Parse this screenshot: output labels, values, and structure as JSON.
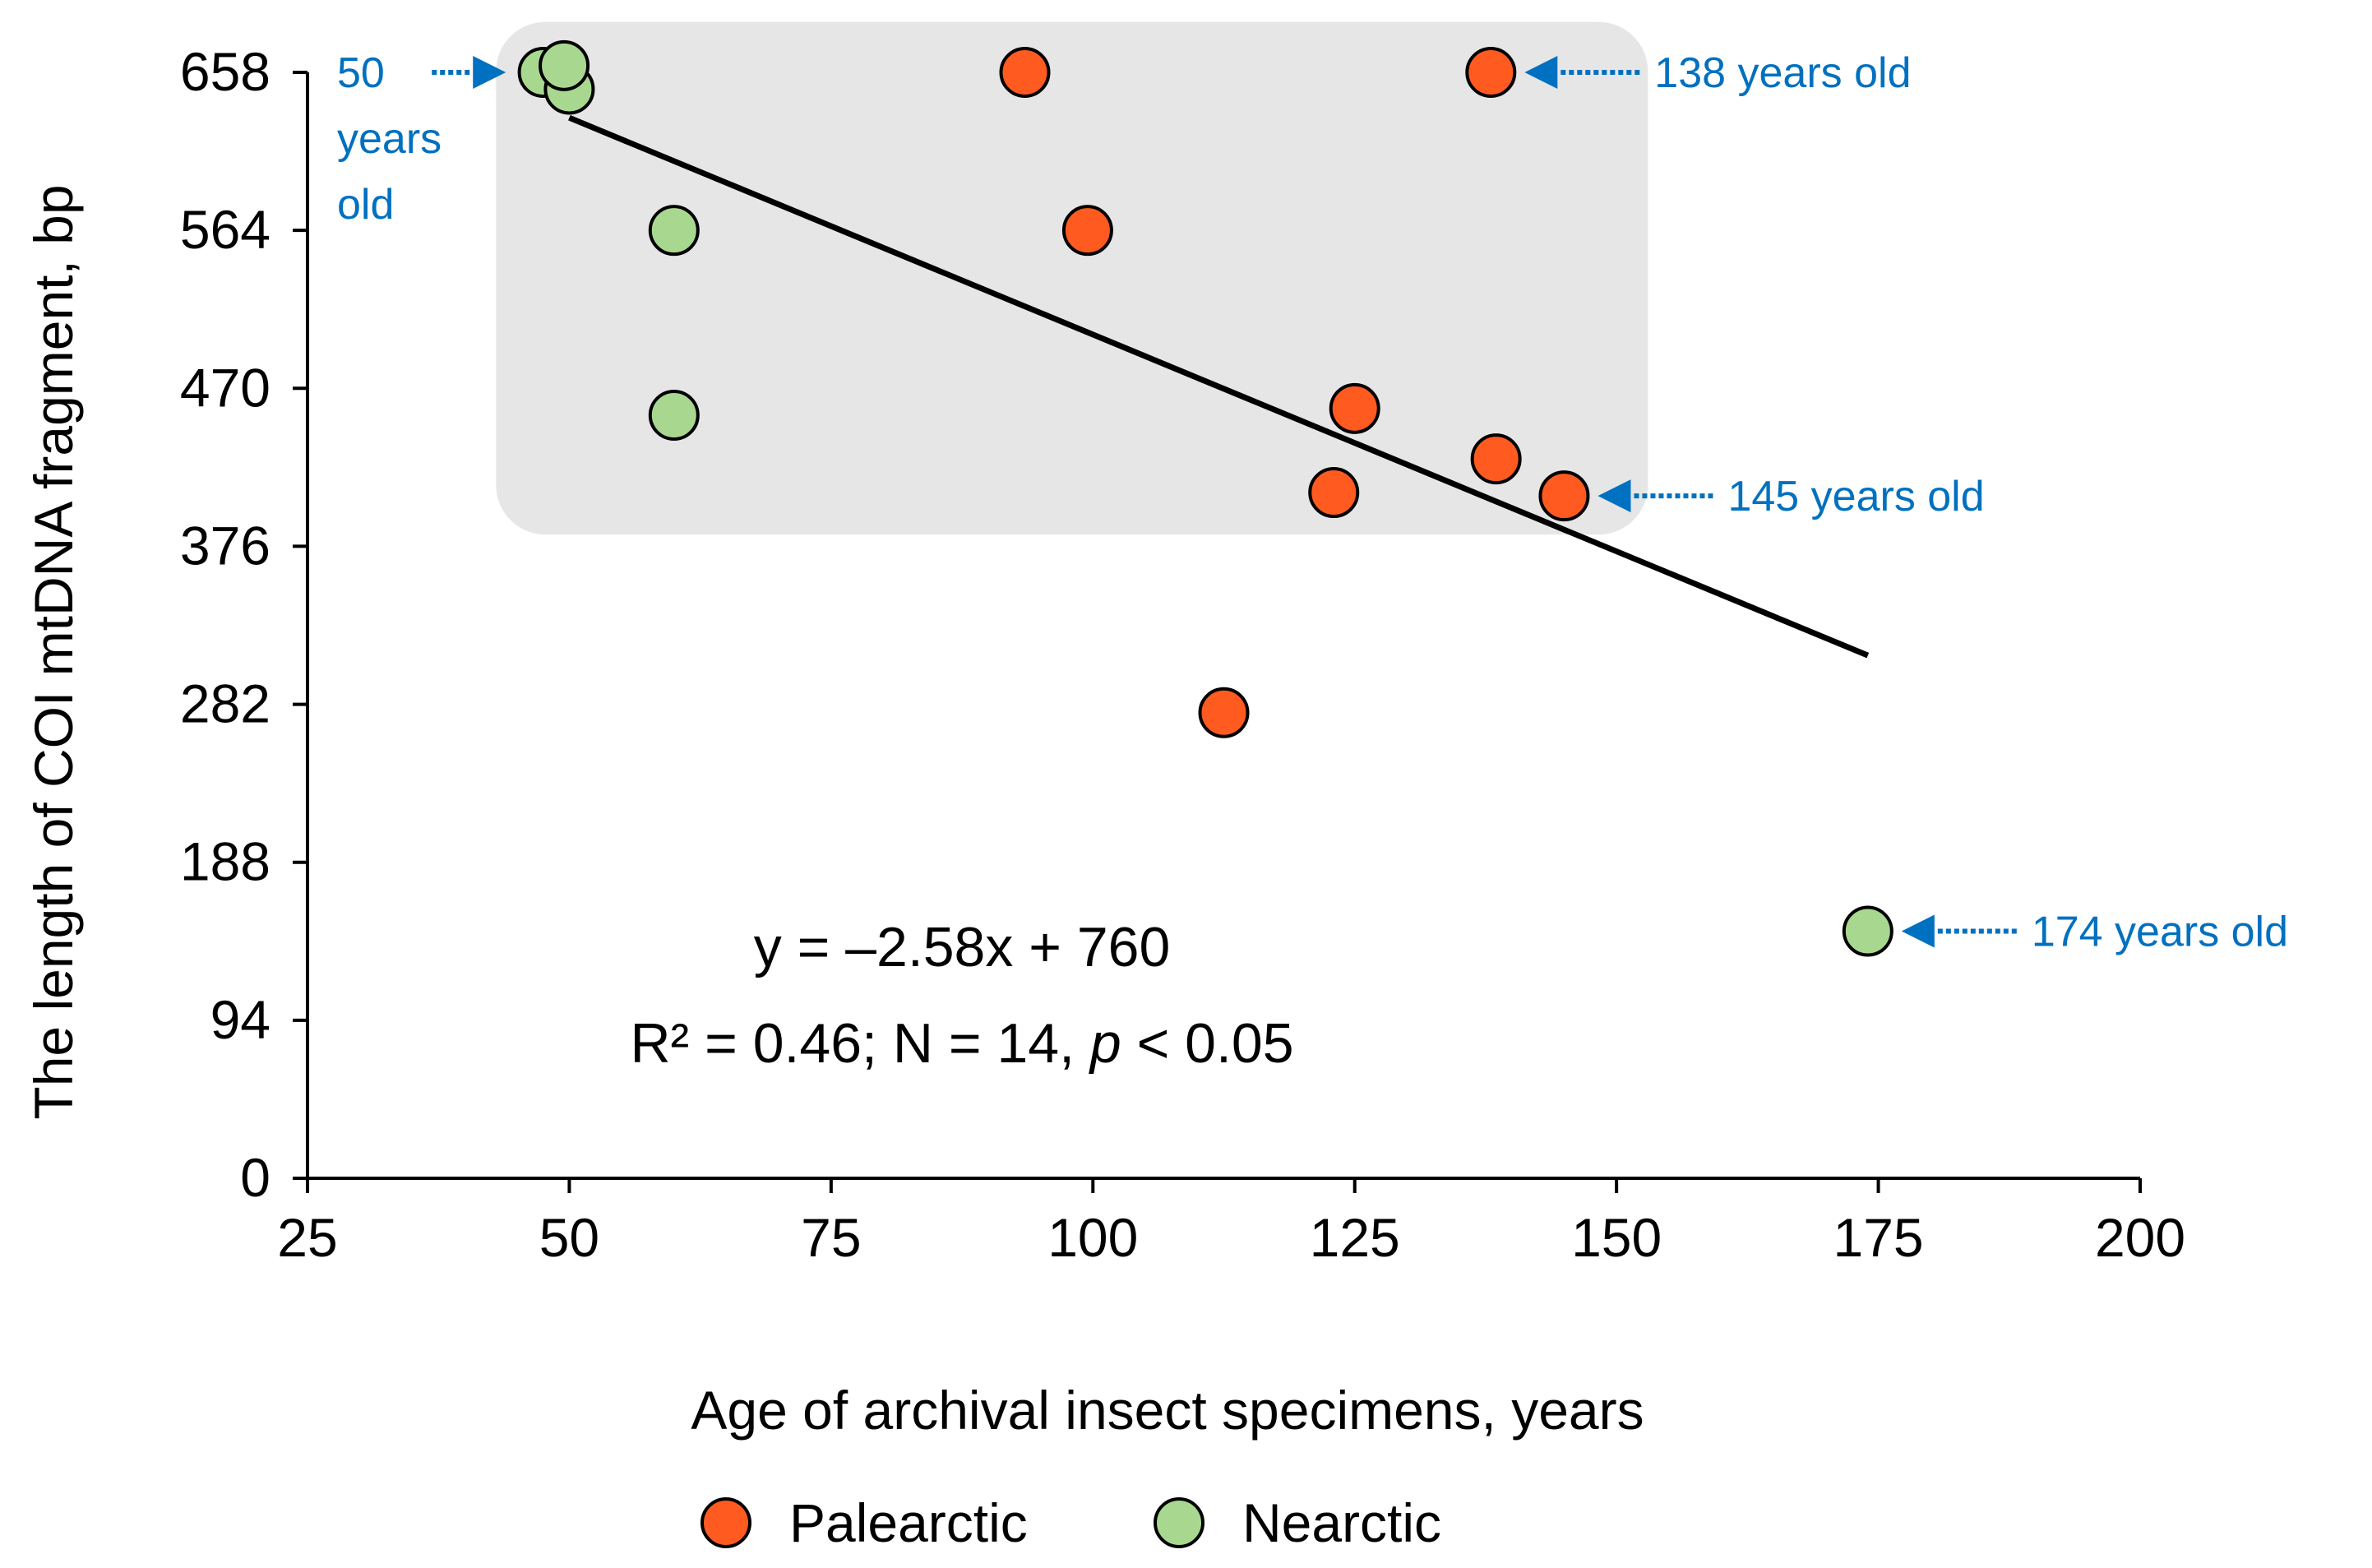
{
  "chart_data": {
    "type": "scatter",
    "xlabel": "Age of archival insect specimens, years",
    "ylabel": "The length of COI mtDNA fragment, bp",
    "xlim": [
      25,
      200
    ],
    "ylim": [
      0,
      658
    ],
    "xticks": [
      25,
      50,
      75,
      100,
      125,
      150,
      175,
      200
    ],
    "yticks": [
      0,
      94,
      188,
      282,
      376,
      470,
      564,
      658
    ],
    "series": [
      {
        "name": "Palearctic",
        "color": "#FF5A1F",
        "points": [
          {
            "x": 93.5,
            "y": 658
          },
          {
            "x": 138,
            "y": 658
          },
          {
            "x": 99.5,
            "y": 564
          },
          {
            "x": 125,
            "y": 458
          },
          {
            "x": 138.5,
            "y": 428
          },
          {
            "x": 123,
            "y": 408
          },
          {
            "x": 145,
            "y": 406
          },
          {
            "x": 112.5,
            "y": 277
          }
        ]
      },
      {
        "name": "Nearctic",
        "color": "#A8D88F",
        "points": [
          {
            "x": 47.5,
            "y": 658
          },
          {
            "x": 50,
            "y": 648
          },
          {
            "x": 49.5,
            "y": 662
          },
          {
            "x": 60,
            "y": 564
          },
          {
            "x": 60,
            "y": 454
          },
          {
            "x": 174,
            "y": 147
          }
        ]
      }
    ],
    "trendline": {
      "slope": -2.58,
      "intercept": 760,
      "x_start": 50,
      "x_end": 174,
      "color": "#000000"
    },
    "shaded_region": {
      "x_from": 43,
      "x_to": 153,
      "y_from": 383,
      "y_to": 688,
      "color": "#E6E6E6"
    },
    "equation": {
      "line1": "y = –2.58x + 760",
      "line2_prefix": "R² = 0.46; N = 14, ",
      "line2_p": "p",
      "line2_suffix": " < 0.05"
    },
    "annotations": [
      {
        "id": "a50",
        "lines": [
          "50",
          "years",
          "old"
        ],
        "target_x": 47,
        "target_y": 658
      },
      {
        "id": "a138",
        "lines": [
          "138 years old"
        ],
        "target_x": 138,
        "target_y": 658
      },
      {
        "id": "a145",
        "lines": [
          "145 years old"
        ],
        "target_x": 145,
        "target_y": 406
      },
      {
        "id": "a174",
        "lines": [
          "174 years old"
        ],
        "target_x": 174,
        "target_y": 147
      }
    ],
    "annotation_color": "#0070C0",
    "legend": {
      "placement": "bottom-center",
      "entries": [
        "Palearctic",
        "Nearctic"
      ]
    }
  }
}
